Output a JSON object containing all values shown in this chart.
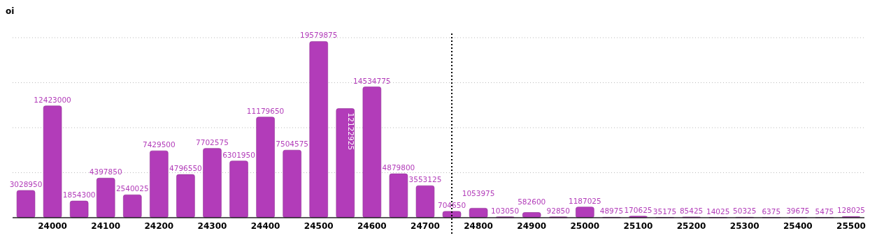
{
  "chart_data": {
    "type": "bar",
    "ylabel": "oi",
    "x": [
      23950,
      24000,
      24050,
      24100,
      24150,
      24200,
      24250,
      24300,
      24350,
      24400,
      24450,
      24500,
      24550,
      24600,
      24650,
      24700,
      24750,
      24800,
      24850,
      24900,
      24950,
      25000,
      25050,
      25100,
      25150,
      25200,
      25250,
      25300,
      25350,
      25400,
      25450,
      25500
    ],
    "values": [
      3028950,
      12423000,
      1854300,
      4397850,
      2540025,
      7429500,
      4796550,
      7702575,
      6301950,
      11179650,
      7504575,
      19579875,
      12122925,
      14534775,
      4879800,
      3553125,
      704650,
      1053975,
      103050,
      582600,
      92850,
      1187025,
      48975,
      170625,
      35175,
      85425,
      14025,
      50325,
      6375,
      39675,
      5475,
      128025
    ],
    "color": "#b23cb9",
    "xlim": [
      23925,
      25525
    ],
    "xticks": [
      24000,
      24100,
      24200,
      24300,
      24400,
      24500,
      24600,
      24700,
      24800,
      24900,
      25000,
      25100,
      25200,
      25300,
      25400,
      25500
    ],
    "ylim": [
      0,
      20000000
    ],
    "yticks": [
      {
        "value": 5000000,
        "label": null
      },
      {
        "value": 10000000,
        "label": null
      },
      {
        "value": 15000000,
        "label": null
      },
      {
        "value": 20000000,
        "label": null
      }
    ],
    "tick_labels": "x",
    "grid": "y",
    "data_labels": true,
    "ref_lines": [
      {
        "axis": "x",
        "value": 24750,
        "line_style": "dotted",
        "color": "#000000"
      }
    ]
  }
}
